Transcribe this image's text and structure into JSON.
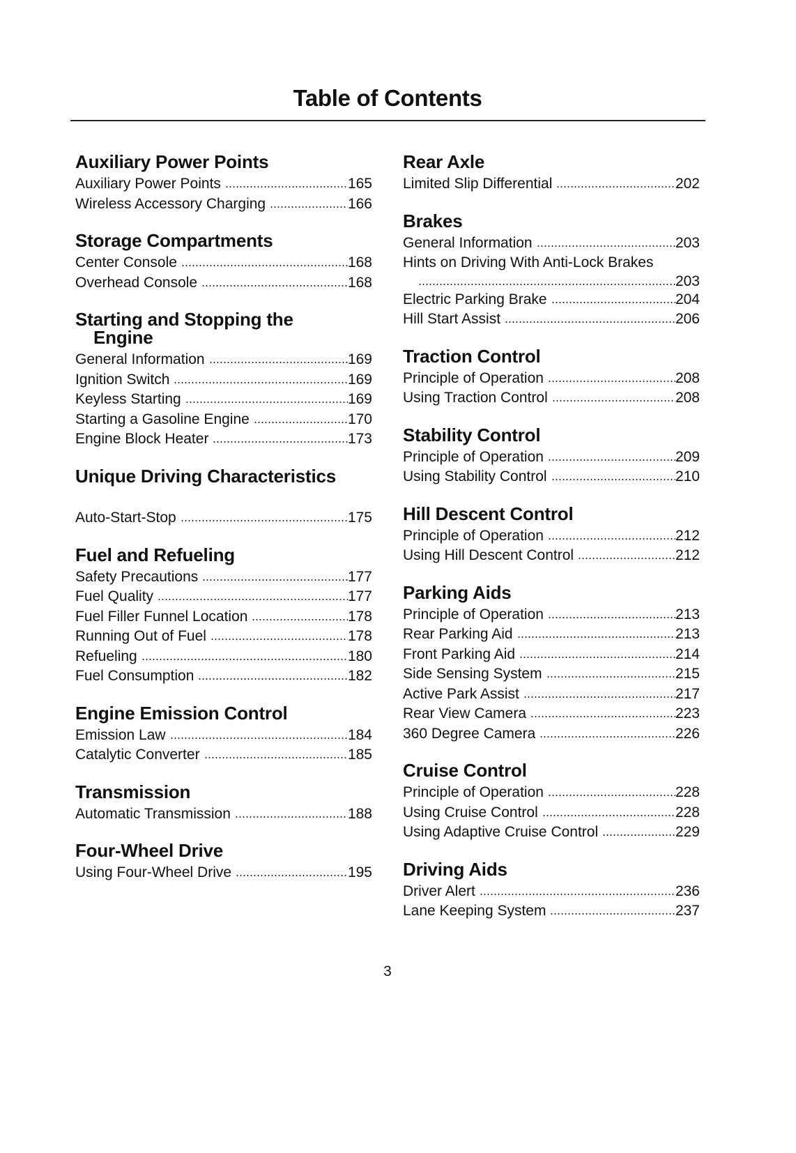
{
  "title": "Table of Contents",
  "page_number": "3",
  "left_sections": [
    {
      "heading": "Auxiliary Power Points",
      "entries": [
        {
          "label": "Auxiliary Power Points",
          "page": "165"
        },
        {
          "label": "Wireless Accessory Charging",
          "page": "166"
        }
      ]
    },
    {
      "heading": "Storage Compartments",
      "entries": [
        {
          "label": "Center Console",
          "page": "168"
        },
        {
          "label": "Overhead Console",
          "page": "168"
        }
      ]
    },
    {
      "heading": "Starting and Stopping the",
      "heading2": "Engine",
      "entries": [
        {
          "label": "General Information",
          "page": "169"
        },
        {
          "label": "Ignition Switch",
          "page": "169"
        },
        {
          "label": "Keyless Starting",
          "page": "169"
        },
        {
          "label": "Starting a Gasoline Engine",
          "page": "170"
        },
        {
          "label": "Engine Block Heater",
          "page": "173"
        }
      ]
    },
    {
      "heading": "Unique Driving Characteristics",
      "spacer": true,
      "entries": [
        {
          "label": "Auto-Start-Stop",
          "page": "175"
        }
      ]
    },
    {
      "heading": "Fuel and Refueling",
      "entries": [
        {
          "label": "Safety Precautions",
          "page": "177"
        },
        {
          "label": "Fuel Quality",
          "page": "177"
        },
        {
          "label": "Fuel Filler Funnel Location",
          "page": "178"
        },
        {
          "label": "Running Out of Fuel",
          "page": "178"
        },
        {
          "label": "Refueling",
          "page": "180"
        },
        {
          "label": "Fuel Consumption",
          "page": "182"
        }
      ]
    },
    {
      "heading": "Engine Emission Control",
      "entries": [
        {
          "label": "Emission Law",
          "page": "184"
        },
        {
          "label": "Catalytic Converter",
          "page": "185"
        }
      ]
    },
    {
      "heading": "Transmission",
      "entries": [
        {
          "label": "Automatic Transmission",
          "page": "188"
        }
      ]
    },
    {
      "heading": "Four-Wheel Drive",
      "entries": [
        {
          "label": "Using Four-Wheel Drive",
          "page": "195"
        }
      ]
    }
  ],
  "right_sections": [
    {
      "heading": "Rear Axle",
      "entries": [
        {
          "label": "Limited Slip Differential",
          "page": "202"
        }
      ]
    },
    {
      "heading": "Brakes",
      "entries": [
        {
          "label": "General Information",
          "page": "203"
        },
        {
          "label": "Hints on Driving With Anti-Lock Brakes",
          "page": "203",
          "wrap": true
        },
        {
          "label": "Electric Parking Brake",
          "page": "204"
        },
        {
          "label": "Hill Start Assist",
          "page": "206"
        }
      ]
    },
    {
      "heading": "Traction Control",
      "entries": [
        {
          "label": "Principle of Operation",
          "page": "208"
        },
        {
          "label": "Using Traction Control",
          "page": "208"
        }
      ]
    },
    {
      "heading": "Stability Control",
      "entries": [
        {
          "label": "Principle of Operation",
          "page": "209"
        },
        {
          "label": "Using Stability Control",
          "page": "210"
        }
      ]
    },
    {
      "heading": "Hill Descent Control",
      "entries": [
        {
          "label": "Principle of Operation",
          "page": "212"
        },
        {
          "label": "Using Hill Descent Control",
          "page": "212"
        }
      ]
    },
    {
      "heading": "Parking Aids",
      "entries": [
        {
          "label": "Principle of Operation",
          "page": "213"
        },
        {
          "label": "Rear Parking Aid",
          "page": "213"
        },
        {
          "label": "Front Parking Aid",
          "page": "214"
        },
        {
          "label": "Side Sensing System",
          "page": "215"
        },
        {
          "label": "Active Park Assist",
          "page": "217"
        },
        {
          "label": "Rear View Camera",
          "page": "223"
        },
        {
          "label": "360 Degree Camera",
          "page": "226"
        }
      ]
    },
    {
      "heading": "Cruise Control",
      "entries": [
        {
          "label": "Principle of Operation",
          "page": "228"
        },
        {
          "label": "Using Cruise Control",
          "page": "228"
        },
        {
          "label": "Using Adaptive Cruise Control",
          "page": "229"
        }
      ]
    },
    {
      "heading": "Driving Aids",
      "entries": [
        {
          "label": "Driver Alert",
          "page": "236"
        },
        {
          "label": "Lane Keeping System",
          "page": "237"
        }
      ]
    }
  ]
}
